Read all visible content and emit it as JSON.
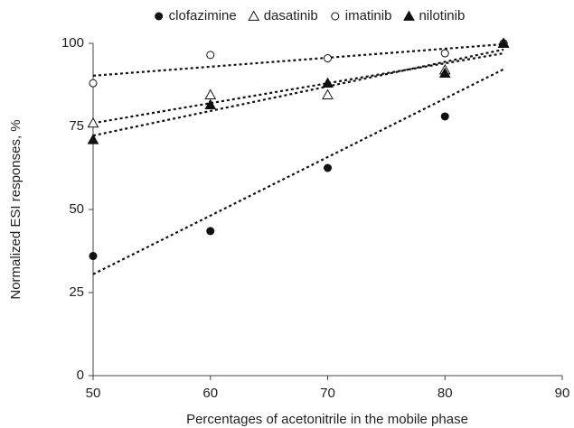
{
  "chart_data": {
    "type": "scatter",
    "x_label": "Percentages of acetonitrile in the mobile phase",
    "y_label": "Normalized ESI responses, %",
    "x": [
      50,
      60,
      70,
      80,
      85
    ],
    "series": [
      {
        "name": "clofazimine",
        "color": "#111111",
        "marker": "circle",
        "filled": true,
        "values": [
          36,
          43.5,
          62.5,
          78,
          100
        ]
      },
      {
        "name": "dasatinib",
        "color": "#111111",
        "marker": "triangle",
        "filled": false,
        "values": [
          76,
          84.5,
          84.5,
          92,
          100
        ]
      },
      {
        "name": "imatinib",
        "color": "#111111",
        "marker": "circle",
        "filled": false,
        "values": [
          88,
          96.5,
          95.5,
          97,
          100
        ]
      },
      {
        "name": "nilotinib",
        "color": "#111111",
        "marker": "triangle",
        "filled": true,
        "values": [
          71,
          81.5,
          88,
          91,
          100
        ]
      }
    ],
    "trendline": "linear",
    "xlim": [
      50,
      90
    ],
    "xticks": [
      50,
      60,
      70,
      80,
      90
    ],
    "ylim": [
      0,
      100
    ],
    "yticks": [
      0,
      25,
      50,
      75,
      100
    ],
    "legend": "top",
    "grid": false
  }
}
